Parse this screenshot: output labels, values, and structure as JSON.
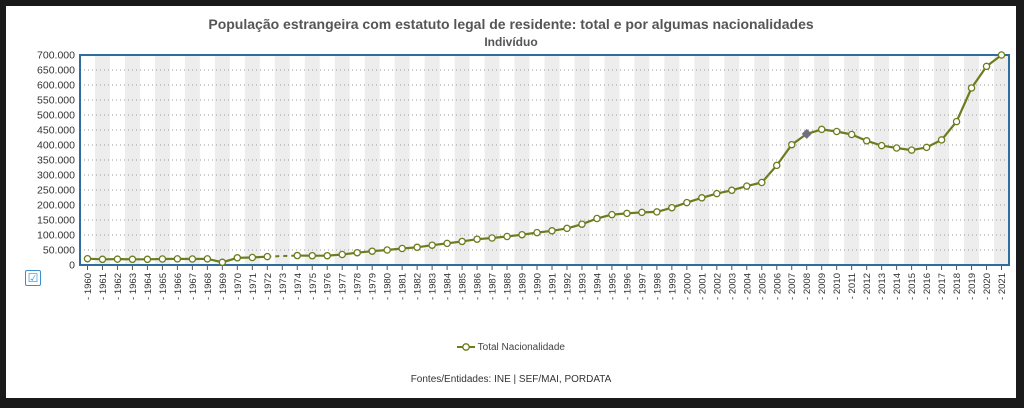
{
  "colors": {
    "line": "#6b7d1e",
    "marker_fill": "#ffffff",
    "highlight": "#6f6f80",
    "frame": "#2d6e9c",
    "band": "#ededed"
  },
  "toggle_icon": "check-icon",
  "toggle_symbol": "☑",
  "legend": {
    "label": "Total Nacionalidade"
  },
  "sources": "Fontes/Entidades: INE | SEF/MAI, PORDATA",
  "chart_data": {
    "type": "line",
    "title": "População estrangeira com estatuto legal de residente: total e por algumas nacionalidades",
    "subtitle": "Indivíduo",
    "ylim": [
      0,
      700000
    ],
    "yticks": [
      "0",
      "50.000",
      "100.000",
      "150.000",
      "200.000",
      "250.000",
      "300.000",
      "350.000",
      "400.000",
      "450.000",
      "500.000",
      "550.000",
      "600.000",
      "650.000",
      "700.000"
    ],
    "grid": true,
    "legend_position": "bottom",
    "categories": [
      "1960",
      "1961",
      "1962",
      "1963",
      "1964",
      "1965",
      "1966",
      "1967",
      "1968",
      "1969",
      "1970",
      "1971",
      "1972",
      "1973",
      "1974",
      "1975",
      "1976",
      "1977",
      "1978",
      "1979",
      "1980",
      "1981",
      "1982",
      "1983",
      "1984",
      "1985",
      "1986",
      "1987",
      "1988",
      "1989",
      "1990",
      "1991",
      "1992",
      "1993",
      "1994",
      "1995",
      "1996",
      "1997",
      "1998",
      "1999",
      "2000",
      "2001",
      "2002",
      "2003",
      "2004",
      "2005",
      "2006",
      "2007",
      "2008",
      "2009",
      "2010",
      "2011",
      "2012",
      "2013",
      "2014",
      "2015",
      "2016",
      "2017",
      "2018",
      "2019",
      "2020",
      "2021"
    ],
    "highlight_index": 48,
    "series": [
      {
        "name": "Total Nacionalidade",
        "values": [
          21000,
          19000,
          19500,
          19000,
          19000,
          20000,
          20500,
          20000,
          20500,
          9000,
          24000,
          25000,
          28000,
          null,
          31500,
          31000,
          31000,
          35000,
          41000,
          46000,
          50000,
          55000,
          59000,
          66000,
          72000,
          78500,
          86000,
          90000,
          95000,
          101000,
          108000,
          114000,
          122000,
          136000,
          155000,
          168000,
          172000,
          175500,
          177000,
          191000,
          208000,
          224000,
          238000,
          249000,
          263000,
          275000,
          332000,
          401000,
          437000,
          452000,
          445000,
          435000,
          414000,
          398000,
          390000,
          383000,
          392000,
          417000,
          478000,
          590000,
          662000,
          700000
        ]
      }
    ]
  }
}
